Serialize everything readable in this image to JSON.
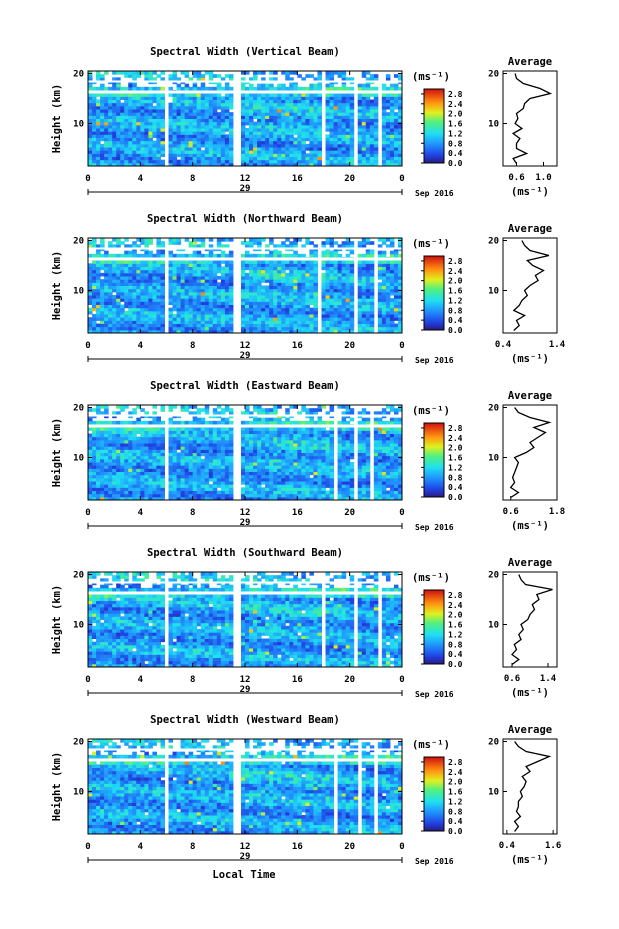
{
  "chart_data": [
    {
      "type": "heatmap",
      "title": "Spectral Width (Vertical Beam)",
      "ylabel": "Height (km)",
      "xticks": [
        "0",
        "4",
        "8",
        "12",
        "16",
        "20",
        "0"
      ],
      "yticks": [
        "10",
        "20"
      ],
      "xlim": [
        0,
        24
      ],
      "ylim": [
        1.5,
        20.5
      ],
      "date_day": "29",
      "date_month": "Sep 2016",
      "colorbar": {
        "unit": "(ms⁻¹)",
        "ticks": [
          "0.0",
          "0.4",
          "0.8",
          "1.2",
          "1.6",
          "2.0",
          "2.4",
          "2.8"
        ],
        "range": [
          0,
          3.0
        ]
      },
      "gaps_hours": [
        [
          5.8,
          6.2
        ],
        [
          11.1,
          11.6
        ],
        [
          17.9,
          18.1
        ],
        [
          18.4,
          18.6
        ],
        [
          20.4,
          20.6
        ],
        [
          21.4,
          21.6
        ],
        [
          22.2,
          22.4
        ]
      ],
      "average": {
        "title": "Average",
        "xlabel": "(ms⁻¹)",
        "xticks": [
          "0.6",
          "1.0"
        ],
        "xlim": [
          0.4,
          1.2
        ],
        "yticks": [
          "10",
          "20"
        ],
        "height_km": [
          2,
          3,
          4,
          5,
          6,
          7,
          8,
          9,
          10,
          11,
          12,
          13,
          14,
          15,
          16,
          17,
          18,
          19,
          20
        ],
        "width_ms": [
          0.6,
          0.55,
          0.75,
          0.6,
          0.6,
          0.65,
          0.55,
          0.68,
          0.58,
          0.62,
          0.6,
          0.7,
          0.72,
          0.8,
          1.1,
          0.95,
          0.7,
          0.6,
          0.58
        ]
      }
    },
    {
      "type": "heatmap",
      "title": "Spectral Width (Northward Beam)",
      "ylabel": "Height (km)",
      "xticks": [
        "0",
        "4",
        "8",
        "12",
        "16",
        "20",
        "0"
      ],
      "yticks": [
        "10",
        "20"
      ],
      "xlim": [
        0,
        24
      ],
      "ylim": [
        1.5,
        20.5
      ],
      "date_day": "29",
      "date_month": "Sep 2016",
      "colorbar": {
        "unit": "(ms⁻¹)",
        "ticks": [
          "0.0",
          "0.4",
          "0.8",
          "1.2",
          "1.6",
          "2.0",
          "2.4",
          "2.8"
        ],
        "range": [
          0,
          3.0
        ]
      },
      "gaps_hours": [
        [
          5.8,
          6.2
        ],
        [
          11.1,
          11.6
        ],
        [
          17.6,
          17.8
        ],
        [
          18.4,
          18.6
        ],
        [
          20.3,
          20.6
        ],
        [
          21.8,
          22.1
        ]
      ],
      "average": {
        "title": "Average",
        "xlabel": "(ms⁻¹)",
        "xticks": [
          "0.4",
          "1.4"
        ],
        "xlim": [
          0.4,
          1.4
        ],
        "yticks": [
          "10",
          "20"
        ],
        "height_km": [
          2,
          3,
          4,
          5,
          6,
          7,
          8,
          9,
          10,
          11,
          12,
          13,
          14,
          15,
          16,
          17,
          18,
          19,
          20
        ],
        "width_ms": [
          0.6,
          0.7,
          0.65,
          0.8,
          0.6,
          0.7,
          0.75,
          0.85,
          0.8,
          0.9,
          1.05,
          1.0,
          1.15,
          0.95,
          0.85,
          1.25,
          0.9,
          0.8,
          0.75
        ]
      }
    },
    {
      "type": "heatmap",
      "title": "Spectral Width (Eastward Beam)",
      "ylabel": "Height (km)",
      "xticks": [
        "0",
        "4",
        "8",
        "12",
        "16",
        "20",
        "0"
      ],
      "yticks": [
        "10",
        "20"
      ],
      "xlim": [
        0,
        24
      ],
      "ylim": [
        1.5,
        20.5
      ],
      "date_day": "29",
      "date_month": "Sep 2016",
      "colorbar": {
        "unit": "(ms⁻¹)",
        "ticks": [
          "0.0",
          "0.4",
          "0.8",
          "1.2",
          "1.6",
          "2.0",
          "2.4",
          "2.8"
        ],
        "range": [
          0,
          3.0
        ]
      },
      "gaps_hours": [
        [
          5.8,
          6.2
        ],
        [
          11.1,
          11.6
        ],
        [
          18.9,
          19.1
        ],
        [
          20.4,
          20.6
        ],
        [
          21.6,
          21.8
        ],
        [
          22.4,
          22.6
        ]
      ],
      "average": {
        "title": "Average",
        "xlabel": "(ms⁻¹)",
        "xticks": [
          "0.6",
          "1.8"
        ],
        "xlim": [
          0.4,
          1.8
        ],
        "yticks": [
          "10",
          "20"
        ],
        "height_km": [
          2,
          3,
          4,
          5,
          6,
          7,
          8,
          9,
          10,
          11,
          12,
          13,
          14,
          15,
          16,
          17,
          18,
          19,
          20
        ],
        "width_ms": [
          0.6,
          0.8,
          0.6,
          0.7,
          0.65,
          0.7,
          0.75,
          0.8,
          0.7,
          1.0,
          1.2,
          1.1,
          1.3,
          1.5,
          1.2,
          1.6,
          1.1,
          0.8,
          0.7
        ]
      }
    },
    {
      "type": "heatmap",
      "title": "Spectral Width (Southward Beam)",
      "ylabel": "Height (km)",
      "xticks": [
        "0",
        "4",
        "8",
        "12",
        "16",
        "20",
        "0"
      ],
      "yticks": [
        "10",
        "20"
      ],
      "xlim": [
        0,
        24
      ],
      "ylim": [
        1.5,
        20.5
      ],
      "date_day": "29",
      "date_month": "Sep 2016",
      "colorbar": {
        "unit": "(ms⁻¹)",
        "ticks": [
          "0.0",
          "0.4",
          "0.8",
          "1.2",
          "1.6",
          "2.0",
          "2.4",
          "2.8"
        ],
        "range": [
          0,
          3.0
        ]
      },
      "gaps_hours": [
        [
          5.8,
          6.2
        ],
        [
          11.1,
          11.6
        ],
        [
          17.8,
          18.0
        ],
        [
          20.3,
          20.5
        ],
        [
          21.1,
          21.3
        ],
        [
          22.2,
          22.5
        ]
      ],
      "average": {
        "title": "Average",
        "xlabel": "(ms⁻¹)",
        "xticks": [
          "0.6",
          "1.4"
        ],
        "xlim": [
          0.4,
          1.6
        ],
        "yticks": [
          "10",
          "20"
        ],
        "height_km": [
          2,
          3,
          4,
          5,
          6,
          7,
          8,
          9,
          10,
          11,
          12,
          13,
          14,
          15,
          16,
          17,
          18,
          19,
          20
        ],
        "width_ms": [
          0.6,
          0.75,
          0.6,
          0.7,
          0.65,
          0.8,
          0.75,
          0.85,
          0.8,
          0.95,
          1.0,
          1.1,
          1.05,
          1.2,
          1.15,
          1.5,
          0.9,
          0.8,
          0.75
        ]
      }
    },
    {
      "type": "heatmap",
      "title": "Spectral Width (Westward Beam)",
      "ylabel": "Height (km)",
      "xticks": [
        "0",
        "4",
        "8",
        "12",
        "16",
        "20",
        "0"
      ],
      "yticks": [
        "10",
        "20"
      ],
      "xlim": [
        0,
        24
      ],
      "ylim": [
        1.5,
        20.5
      ],
      "date_day": "29",
      "date_month": "Sep 2016",
      "colorbar": {
        "unit": "(ms⁻¹)",
        "ticks": [
          "0.0",
          "0.4",
          "0.8",
          "1.2",
          "1.6",
          "2.0",
          "2.4",
          "2.8"
        ],
        "range": [
          0,
          3.0
        ]
      },
      "gaps_hours": [
        [
          5.8,
          6.2
        ],
        [
          11.1,
          11.6
        ],
        [
          18.9,
          19.1
        ],
        [
          20.6,
          20.9
        ],
        [
          21.7,
          22.0
        ]
      ],
      "average": {
        "title": "Average",
        "xlabel": "(ms⁻¹)",
        "xticks": [
          "0.4",
          "1.6"
        ],
        "xlim": [
          0.3,
          1.7
        ],
        "yticks": [
          "10",
          "20"
        ],
        "height_km": [
          2,
          3,
          4,
          5,
          6,
          7,
          8,
          9,
          10,
          11,
          12,
          13,
          14,
          15,
          16,
          17,
          18,
          19,
          20
        ],
        "width_ms": [
          0.6,
          0.7,
          0.6,
          0.75,
          0.65,
          0.7,
          0.7,
          0.8,
          0.75,
          0.85,
          0.9,
          0.8,
          1.0,
          0.9,
          1.2,
          1.5,
          0.9,
          0.7,
          0.6
        ]
      }
    }
  ],
  "xlabel": "Local Time"
}
